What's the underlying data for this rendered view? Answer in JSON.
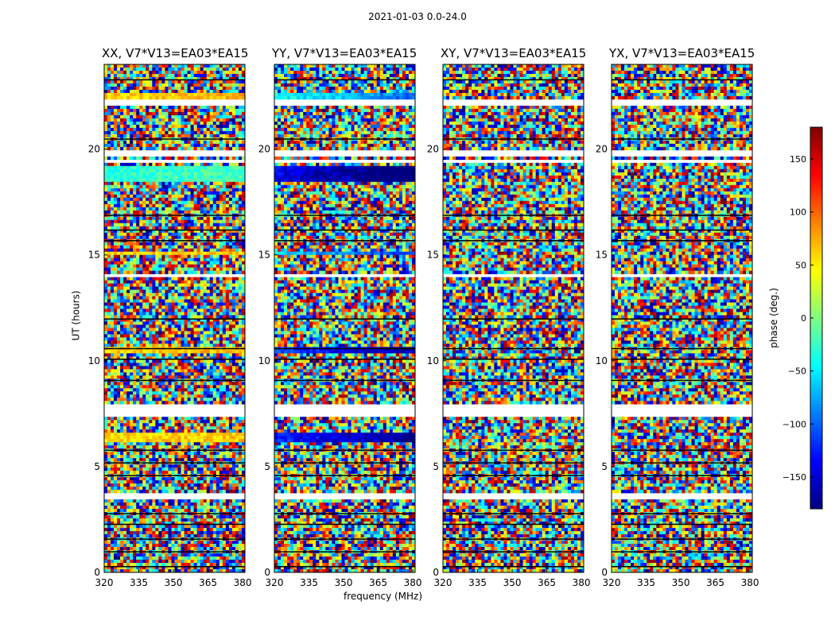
{
  "figure": {
    "suptitle": "2021-01-03 0.0-24.0",
    "ylabel": "UT (hours)",
    "xlabel": "frequency (MHz)",
    "colorbar_label": "phase (deg.)"
  },
  "chart_data": {
    "type": "heatmap",
    "panels": [
      {
        "title": "XX, V7*V13=EA03*EA15",
        "key": "XX"
      },
      {
        "title": "YY, V7*V13=EA03*EA15",
        "key": "YY"
      },
      {
        "title": "XY, V7*V13=EA03*EA15",
        "key": "XY"
      },
      {
        "title": "YX, V7*V13=EA03*EA15",
        "key": "YX"
      }
    ],
    "xlim": [
      320,
      381
    ],
    "ylim": [
      0,
      24
    ],
    "xticks": [
      320,
      335,
      350,
      365,
      380
    ],
    "yticks": [
      0,
      5,
      10,
      15,
      20
    ],
    "colorbar": {
      "vmin": -180,
      "vmax": 180,
      "ticks": [
        -150,
        -100,
        -50,
        0,
        50,
        100,
        150
      ],
      "tick_labels": [
        "−150",
        "−100",
        "−50",
        "0",
        "50",
        "100",
        "150"
      ],
      "colormap": "jet"
    },
    "flagged_ut_hours": [
      3.5,
      3.7,
      7.5,
      7.8,
      14.0,
      19.4,
      19.8,
      22.2
    ],
    "coherent_bands": [
      {
        "ut_from": 6.2,
        "ut_to": 6.6,
        "phase_XX": 55,
        "phase_YY": -120
      },
      {
        "ut_from": 10.3,
        "ut_to": 10.7,
        "phase_XX": 60,
        "phase_YY": -110
      },
      {
        "ut_from": 15.0,
        "ut_to": 15.2,
        "phase_XX": 55,
        "phase_YY": -60
      },
      {
        "ut_from": 18.5,
        "ut_to": 19.2,
        "phase_XX": -30,
        "phase_YY": -140
      },
      {
        "ut_from": 22.3,
        "ut_to": 22.6,
        "phase_XX": 60,
        "phase_YY": -40
      }
    ],
    "cell_phase_note": "random phase noise (−180..180 deg) outside coherent bands"
  }
}
